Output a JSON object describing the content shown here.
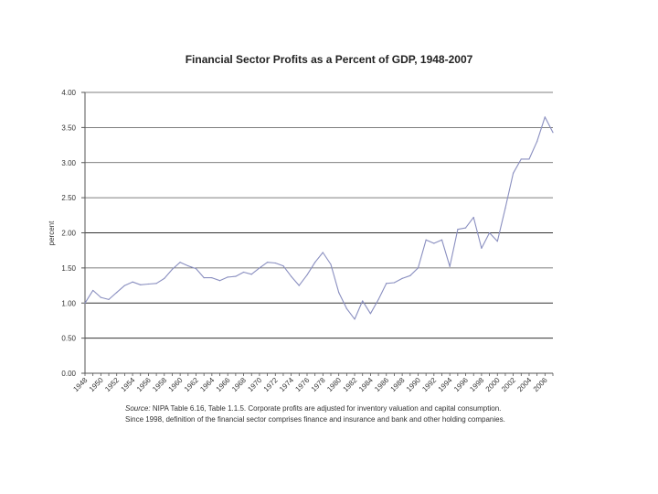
{
  "chart_data": {
    "type": "line",
    "title": "Financial Sector Profits as a Percent of GDP, 1948-2007",
    "ylabel": "percent",
    "xlabel": "",
    "ylim": [
      0,
      4
    ],
    "xlim": [
      1948,
      2007
    ],
    "y_ticks": [
      "0.00",
      "0.50",
      "1.00",
      "1.50",
      "2.00",
      "2.50",
      "3.00",
      "3.50",
      "4.00"
    ],
    "x_ticks": [
      "1948",
      "1950",
      "1952",
      "1954",
      "1956",
      "1958",
      "1960",
      "1962",
      "1964",
      "1966",
      "1968",
      "1970",
      "1972",
      "1974",
      "1976",
      "1978",
      "1980",
      "1982",
      "1984",
      "1986",
      "1988",
      "1990",
      "1992",
      "1994",
      "1996",
      "1998",
      "2000",
      "2002",
      "2004",
      "2006"
    ],
    "grid": "horizontal",
    "line_color": "#8a8fc0",
    "series": [
      {
        "x": [
          1948,
          1949,
          1950,
          1951,
          1952,
          1953,
          1954,
          1955,
          1956,
          1957,
          1958,
          1959,
          1960,
          1961,
          1962,
          1963,
          1964,
          1965,
          1966,
          1967,
          1968,
          1969,
          1970,
          1971,
          1972,
          1973,
          1974,
          1975,
          1976,
          1977,
          1978,
          1979,
          1980,
          1981,
          1982,
          1983,
          1984,
          1985,
          1986,
          1987,
          1988,
          1989,
          1990,
          1991,
          1992,
          1993,
          1994,
          1995,
          1996,
          1997,
          1998,
          1999,
          2000,
          2001,
          2002,
          2003,
          2004,
          2005,
          2006,
          2007
        ],
        "values": [
          1.0,
          1.18,
          1.08,
          1.05,
          1.15,
          1.25,
          1.3,
          1.26,
          1.27,
          1.28,
          1.35,
          1.48,
          1.58,
          1.53,
          1.49,
          1.36,
          1.36,
          1.32,
          1.37,
          1.38,
          1.44,
          1.41,
          1.5,
          1.58,
          1.57,
          1.53,
          1.38,
          1.25,
          1.4,
          1.58,
          1.72,
          1.55,
          1.15,
          0.92,
          0.77,
          1.03,
          0.85,
          1.05,
          1.28,
          1.29,
          1.35,
          1.39,
          1.5,
          1.9,
          1.85,
          1.9,
          1.52,
          2.05,
          2.07,
          2.22,
          1.78,
          2.0,
          1.88,
          2.35,
          2.85,
          3.05,
          3.05,
          3.3,
          3.65,
          3.43
        ]
      }
    ],
    "source_label": "Source:",
    "source_text": "NIPA Table 6.16, Table 1.1.5. Corporate profits are adjusted for inventory valuation and capital consumption.",
    "source_text2": "Since 1998, definition of the financial sector comprises finance and insurance and bank and other holding companies."
  }
}
